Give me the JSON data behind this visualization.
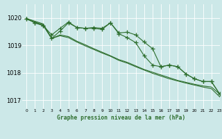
{
  "background_color": "#cce8e8",
  "grid_color": "#ffffff",
  "line_color": "#2d6e2d",
  "title": "Graphe pression niveau de la mer (hPa)",
  "xlim": [
    -0.5,
    23
  ],
  "ylim": [
    1016.7,
    1020.5
  ],
  "yticks": [
    1017,
    1018,
    1019,
    1020
  ],
  "xticks": [
    0,
    1,
    2,
    3,
    4,
    5,
    6,
    7,
    8,
    9,
    10,
    11,
    12,
    13,
    14,
    15,
    16,
    17,
    18,
    19,
    20,
    21,
    22,
    23
  ],
  "series": [
    {
      "x": [
        0,
        1,
        2,
        3,
        4,
        5,
        6,
        7,
        8,
        9,
        10,
        11,
        12,
        13,
        14,
        15,
        16,
        17,
        18,
        19,
        20,
        21,
        22,
        23
      ],
      "y": [
        1019.98,
        1019.82,
        1019.72,
        1019.38,
        1019.62,
        1019.85,
        1019.65,
        1019.62,
        1019.65,
        1019.62,
        1019.82,
        1019.45,
        1019.48,
        1019.38,
        1019.12,
        1018.88,
        1018.22,
        1018.28,
        1018.22,
        1017.95,
        1017.78,
        1017.68,
        1017.68,
        1017.22
      ],
      "marker": true
    },
    {
      "x": [
        0,
        1,
        2,
        3,
        4,
        5,
        6,
        7,
        8,
        9,
        10,
        11,
        12,
        13,
        14,
        15,
        16,
        17,
        18,
        19,
        20,
        21,
        22,
        23
      ],
      "y": [
        1019.98,
        1019.82,
        1019.72,
        1019.25,
        1019.52,
        1019.82,
        1019.65,
        1019.62,
        1019.62,
        1019.58,
        1019.82,
        1019.42,
        1019.28,
        1019.1,
        1018.62,
        1018.28,
        1018.22,
        1018.28,
        1018.22,
        1017.95,
        1017.78,
        1017.68,
        1017.68,
        1017.22
      ],
      "marker": true
    },
    {
      "x": [
        0,
        1,
        2,
        3,
        4,
        5,
        6,
        7,
        8,
        9,
        10,
        11,
        12,
        13,
        14,
        15,
        16,
        17,
        18,
        19,
        20,
        21,
        22,
        23
      ],
      "y": [
        1019.98,
        1019.88,
        1019.78,
        1019.25,
        1019.38,
        1019.32,
        1019.15,
        1019.02,
        1018.88,
        1018.75,
        1018.62,
        1018.48,
        1018.38,
        1018.25,
        1018.12,
        1018.02,
        1017.92,
        1017.82,
        1017.72,
        1017.65,
        1017.58,
        1017.52,
        1017.48,
        1017.22
      ],
      "marker": false
    },
    {
      "x": [
        0,
        1,
        2,
        3,
        4,
        5,
        6,
        7,
        8,
        9,
        10,
        11,
        12,
        13,
        14,
        15,
        16,
        17,
        18,
        19,
        20,
        21,
        22,
        23
      ],
      "y": [
        1019.95,
        1019.85,
        1019.75,
        1019.25,
        1019.35,
        1019.28,
        1019.12,
        1018.98,
        1018.85,
        1018.72,
        1018.6,
        1018.45,
        1018.35,
        1018.22,
        1018.1,
        1017.98,
        1017.88,
        1017.78,
        1017.7,
        1017.62,
        1017.55,
        1017.48,
        1017.42,
        1017.12
      ],
      "marker": false
    }
  ]
}
